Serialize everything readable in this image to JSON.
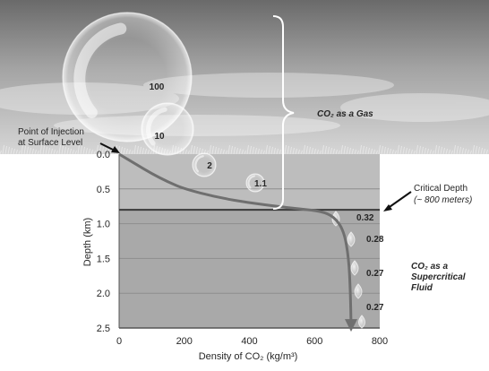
{
  "chart_data": {
    "type": "line",
    "xlabel": "Density of CO₂ (kg/m³)",
    "ylabel": "Depth (km)",
    "xlim": [
      0,
      800
    ],
    "ylim": [
      0,
      2.5
    ],
    "y_inverted": true,
    "grid": true,
    "x_ticks": [
      "0",
      "200",
      "400",
      "600",
      "800"
    ],
    "y_ticks": [
      "0.0",
      "0.5",
      "1.0",
      "1.5",
      "2.0",
      "2.5"
    ],
    "series": [
      {
        "x": [
          0,
          50,
          100,
          150,
          200,
          300,
          400,
          500,
          560,
          620,
          660,
          690,
          705,
          710,
          712
        ],
        "y": [
          0.0,
          0.14,
          0.28,
          0.4,
          0.5,
          0.62,
          0.7,
          0.76,
          0.79,
          0.82,
          0.9,
          1.1,
          1.5,
          2.0,
          2.45
        ]
      }
    ],
    "critical_depth_km": 0.8
  },
  "annotations": {
    "injection_point": "Point of Injection\nat Surface Level",
    "critical_depth_title": "Critical Depth",
    "critical_depth_sub": "(~ 800 meters)",
    "gas_label": "CO₂ as a Gas",
    "supercritical_label": "CO₂ as a\nSupercritical\nFluid"
  },
  "bubbles": {
    "gas": [
      {
        "label": "100",
        "depth_km": -1.6,
        "density": 0
      },
      {
        "label": "10",
        "depth_km": -0.4,
        "density": 0
      },
      {
        "label": "2",
        "depth_km": 0.1,
        "density": 0
      },
      {
        "label": "1.1",
        "depth_km": 0.4,
        "density": 0
      }
    ],
    "fluid": [
      {
        "label": "0.32",
        "depth_km": 0.9
      },
      {
        "label": "0.28",
        "depth_km": 1.3
      },
      {
        "label": "0.27",
        "depth_km": 1.75
      },
      {
        "label": "0.27",
        "depth_km": 2.2
      }
    ]
  },
  "colors": {
    "upper_zone": "#bdbdbd",
    "lower_zone": "#a9a9a9",
    "curve": "#6f6f6f",
    "grid": "#8e8e8e",
    "text": "#262626"
  }
}
